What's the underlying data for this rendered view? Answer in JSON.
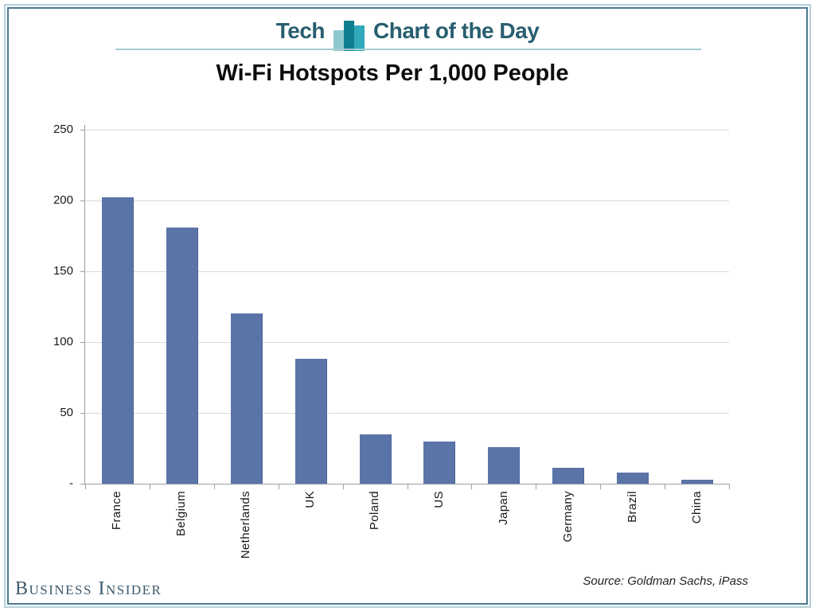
{
  "header": {
    "kicker": "Tech",
    "title": "Chart of the Day",
    "icon": "bar-chart-icon"
  },
  "chart_title": "Wi-Fi Hotspots Per 1,000 People",
  "source_note": "Source: Goldman Sachs, iPass",
  "brand": "Business Insider",
  "colors": {
    "bar": "#5b74a8",
    "bar_edge": "#4d639b",
    "header_text": "#285f70",
    "icon_bar_light": "#8fc9cf",
    "icon_bar_dark": "#0f7f90",
    "icon_bar_mid": "#31a9bb",
    "frame_outer": "#b6d0d9",
    "frame_inner": "#4a7a8f",
    "gridline": "#dadada",
    "axis": "#9aa0a6",
    "brand_text": "#3d5a6d"
  },
  "chart_data": {
    "type": "bar",
    "title": "Wi-Fi Hotspots Per 1,000 People",
    "categories": [
      "France",
      "Belgium",
      "Netherlands",
      "UK",
      "Poland",
      "US",
      "Japan",
      "Germany",
      "Brazil",
      "China"
    ],
    "values": [
      202,
      181,
      120,
      88,
      35,
      30,
      26,
      11,
      8,
      3
    ],
    "xlabel": "",
    "ylabel": "",
    "ylim": [
      0,
      250
    ],
    "yticks": [
      0,
      50,
      100,
      150,
      200,
      250
    ],
    "ytick_labels": [
      "-",
      "50",
      "100",
      "150",
      "200",
      "250"
    ],
    "grid": true,
    "legend": "none"
  }
}
